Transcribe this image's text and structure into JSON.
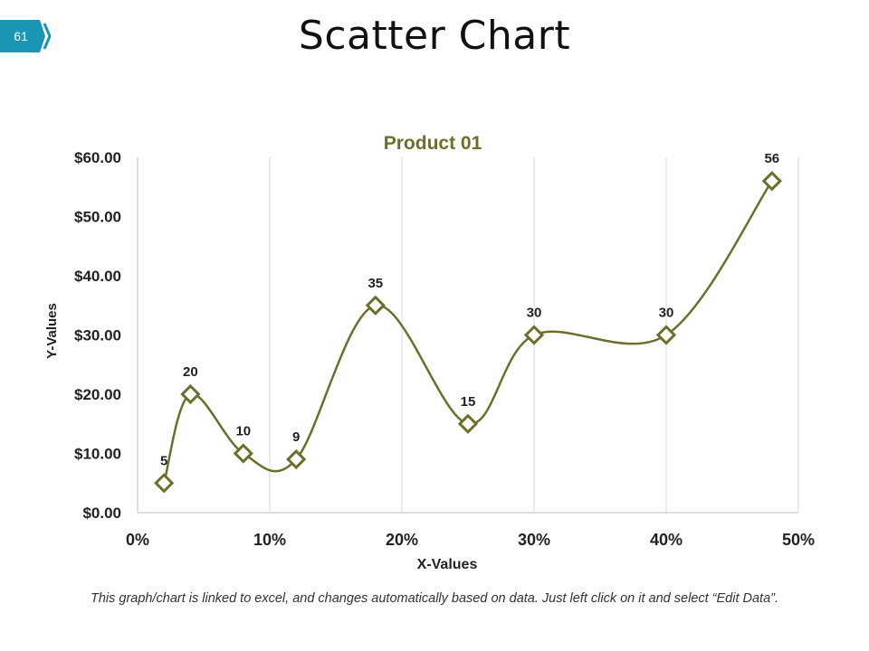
{
  "slide": {
    "page_number": "61",
    "title": "Scatter Chart",
    "footnote": "This graph/chart is linked to excel, and changes automatically based on data. Just left click on it and select “Edit Data”."
  },
  "colors": {
    "accent": "#1b95b5",
    "series": "#6b6f2a",
    "title": "#6b6f2a"
  },
  "chart_data": {
    "type": "scatter",
    "title": "Product 01",
    "xlabel": "X-Values",
    "ylabel": "Y-Values",
    "xlim": [
      0,
      0.5
    ],
    "ylim": [
      0,
      60
    ],
    "x_ticks": [
      {
        "value": 0,
        "label": "0%"
      },
      {
        "value": 0.1,
        "label": "10%"
      },
      {
        "value": 0.2,
        "label": "20%"
      },
      {
        "value": 0.3,
        "label": "30%"
      },
      {
        "value": 0.4,
        "label": "40%"
      },
      {
        "value": 0.5,
        "label": "50%"
      }
    ],
    "y_ticks": [
      {
        "value": 0,
        "label": "$0.00"
      },
      {
        "value": 10,
        "label": "$10.00"
      },
      {
        "value": 20,
        "label": "$20.00"
      },
      {
        "value": 30,
        "label": "$30.00"
      },
      {
        "value": 40,
        "label": "$40.00"
      },
      {
        "value": 50,
        "label": "$50.00"
      },
      {
        "value": 60,
        "label": "$60.00"
      }
    ],
    "gridlines": "vertical",
    "smooth_line": true,
    "marker": "diamond",
    "series": [
      {
        "name": "Product 01",
        "points": [
          {
            "x": 0.02,
            "y": 5,
            "label": "5"
          },
          {
            "x": 0.04,
            "y": 20,
            "label": "20"
          },
          {
            "x": 0.08,
            "y": 10,
            "label": "10"
          },
          {
            "x": 0.12,
            "y": 9,
            "label": "9"
          },
          {
            "x": 0.18,
            "y": 35,
            "label": "35"
          },
          {
            "x": 0.25,
            "y": 15,
            "label": "15"
          },
          {
            "x": 0.3,
            "y": 30,
            "label": "30"
          },
          {
            "x": 0.4,
            "y": 30,
            "label": "30"
          },
          {
            "x": 0.48,
            "y": 56,
            "label": "56"
          }
        ]
      }
    ]
  }
}
